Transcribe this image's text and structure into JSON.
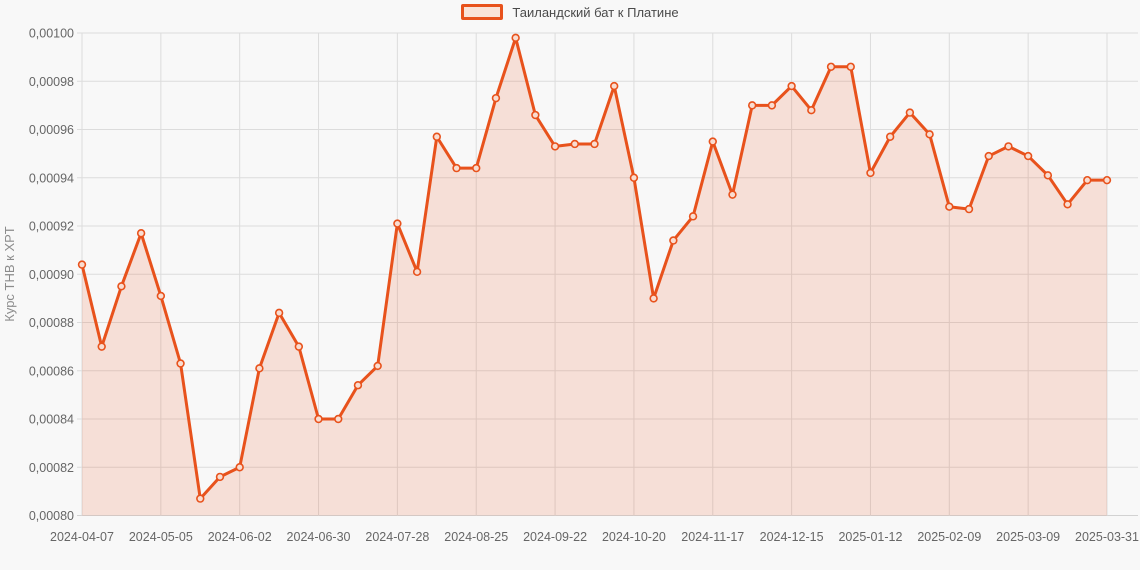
{
  "legend": {
    "label": "Таиландский бат к Платине"
  },
  "chart_data": {
    "type": "area",
    "title": "",
    "xlabel": "",
    "ylabel": "Курс THB к XPT",
    "grid": true,
    "legend_position": "top-center",
    "ylim": [
      0.0008,
      0.001
    ],
    "y_tick_step": 2e-05,
    "y_tick_labels": [
      "0,00100",
      "0,00098",
      "0,00096",
      "0,00094",
      "0,00092",
      "0,00090",
      "0,00088",
      "0,00086",
      "0,00084",
      "0,00082",
      "0,00080"
    ],
    "x_tick_every": 4,
    "x_tick_labels": [
      "2024-04-07",
      "2024-05-05",
      "2024-06-02",
      "2024-06-30",
      "2024-07-28",
      "2024-08-25",
      "2024-09-22",
      "2024-10-20",
      "2024-11-17",
      "2024-12-15",
      "2025-01-12",
      "2025-02-09",
      "2025-03-09",
      "2025-03-31"
    ],
    "series": [
      {
        "name": "Таиландский бат к Платине",
        "values": [
          0.000904,
          0.00087,
          0.000895,
          0.000917,
          0.000891,
          0.000863,
          0.000807,
          0.000816,
          0.00082,
          0.000861,
          0.000884,
          0.00087,
          0.00084,
          0.00084,
          0.000854,
          0.000862,
          0.000921,
          0.000901,
          0.000957,
          0.000944,
          0.000944,
          0.000973,
          0.000998,
          0.000966,
          0.000953,
          0.000954,
          0.000954,
          0.000978,
          0.00094,
          0.00089,
          0.000914,
          0.000924,
          0.000955,
          0.000933,
          0.00097,
          0.00097,
          0.000978,
          0.000968,
          0.000986,
          0.000986,
          0.000942,
          0.000957,
          0.000967,
          0.000958,
          0.000928,
          0.000927,
          0.000949,
          0.000953,
          0.000949,
          0.000941,
          0.000929,
          0.000939,
          0.000939
        ]
      }
    ],
    "colors": {
      "line": "#e8521c",
      "fill": "rgba(232,82,28,0.15)",
      "marker_fill": "#f9ddd1",
      "grid": "#dcdcdc",
      "axis": "#d2d2d2",
      "tick_text": "#666666",
      "axis_title_text": "#8c8c8c",
      "legend_text": "#4a4a4a"
    }
  }
}
